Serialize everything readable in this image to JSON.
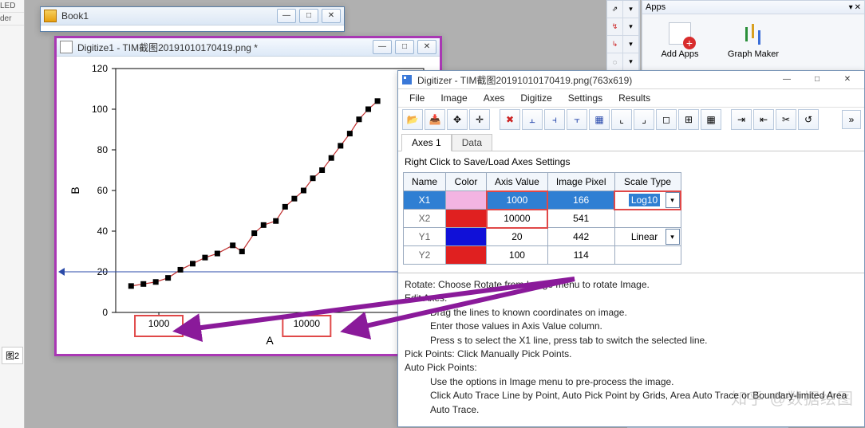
{
  "left_fragment": {
    "r1": "LED",
    "r2": "der",
    "tab": "图2"
  },
  "book1": {
    "title": "Book1",
    "icon_bg": "linear-gradient(#f6d060,#e8a010)"
  },
  "plotwin": {
    "title": "Digitize1 - TIM截图20191010170419.png *",
    "chart": {
      "type": "scatter",
      "xlabel": "A",
      "ylabel": "B",
      "yticks": [
        0,
        20,
        40,
        60,
        80,
        100,
        120
      ],
      "xticklabels": [
        "1000",
        "10000"
      ],
      "xticks_xfrac": [
        0.14,
        0.62
      ],
      "highlight_xticks": [
        0,
        1
      ],
      "blue_guideline_yvalue": 20,
      "fit_color": "#c03030",
      "point_color": "#000000",
      "points": [
        [
          0.05,
          13
        ],
        [
          0.09,
          14
        ],
        [
          0.13,
          15
        ],
        [
          0.17,
          17
        ],
        [
          0.21,
          21
        ],
        [
          0.25,
          24
        ],
        [
          0.29,
          27
        ],
        [
          0.33,
          29
        ],
        [
          0.38,
          33
        ],
        [
          0.41,
          30
        ],
        [
          0.45,
          39
        ],
        [
          0.48,
          43
        ],
        [
          0.52,
          45
        ],
        [
          0.55,
          52
        ],
        [
          0.58,
          56
        ],
        [
          0.61,
          60
        ],
        [
          0.64,
          66
        ],
        [
          0.67,
          70
        ],
        [
          0.7,
          76
        ],
        [
          0.73,
          82
        ],
        [
          0.76,
          88
        ],
        [
          0.79,
          95
        ],
        [
          0.82,
          100
        ],
        [
          0.85,
          104
        ]
      ]
    }
  },
  "dlg": {
    "title": "Digitizer - TIM截图20191010170419.png(763x619)",
    "menu": [
      "File",
      "Image",
      "Axes",
      "Digitize",
      "Settings",
      "Results"
    ],
    "tabs": [
      "Axes 1",
      "Data"
    ],
    "hint": "Right Click to Save/Load Axes Settings",
    "cols": [
      "Name",
      "Color",
      "Axis Value",
      "Image Pixel",
      "Scale Type"
    ],
    "rows": [
      {
        "name": "X1",
        "color": "#f3b4e2",
        "axis": "1000",
        "pixel": "166",
        "scale": "Log10",
        "selected": true,
        "hl_axis": true,
        "hl_scale": true
      },
      {
        "name": "X2",
        "color": "#e02020",
        "axis": "10000",
        "pixel": "541",
        "scale": "",
        "selected": false,
        "hl_axis": true,
        "hl_scale": false
      },
      {
        "name": "Y1",
        "color": "#1010d8",
        "axis": "20",
        "pixel": "442",
        "scale": "Linear",
        "selected": false,
        "hl_axis": false,
        "hl_scale": false
      },
      {
        "name": "Y2",
        "color": "#e02020",
        "axis": "100",
        "pixel": "114",
        "scale": "",
        "selected": false,
        "hl_axis": false,
        "hl_scale": false
      }
    ],
    "instr": {
      "l1": "Rotate: Choose Rotate from Image menu to rotate Image.",
      "l2": "Edit Axes:",
      "l2a": "Drag the lines to known coordinates on image.",
      "l2b": "Enter those values in Axis Value column.",
      "l2c": "Press s to select the X1 line, press tab to switch the selected line.",
      "l3": "Pick Points: Click Manually Pick Points.",
      "l4": "Auto Pick Points:",
      "l4a": "Use the options in Image menu to pre-process the image.",
      "l4b": "Click Auto Trace Line by Point, Auto Pick Point by Grids, Area Auto Trace or Boundary-limited Area Auto Trace.",
      "l4c": ""
    }
  },
  "apps": {
    "title": "Apps",
    "items": [
      "Add Apps",
      "Graph Maker"
    ]
  },
  "watermark": "知乎 @数据绘图"
}
